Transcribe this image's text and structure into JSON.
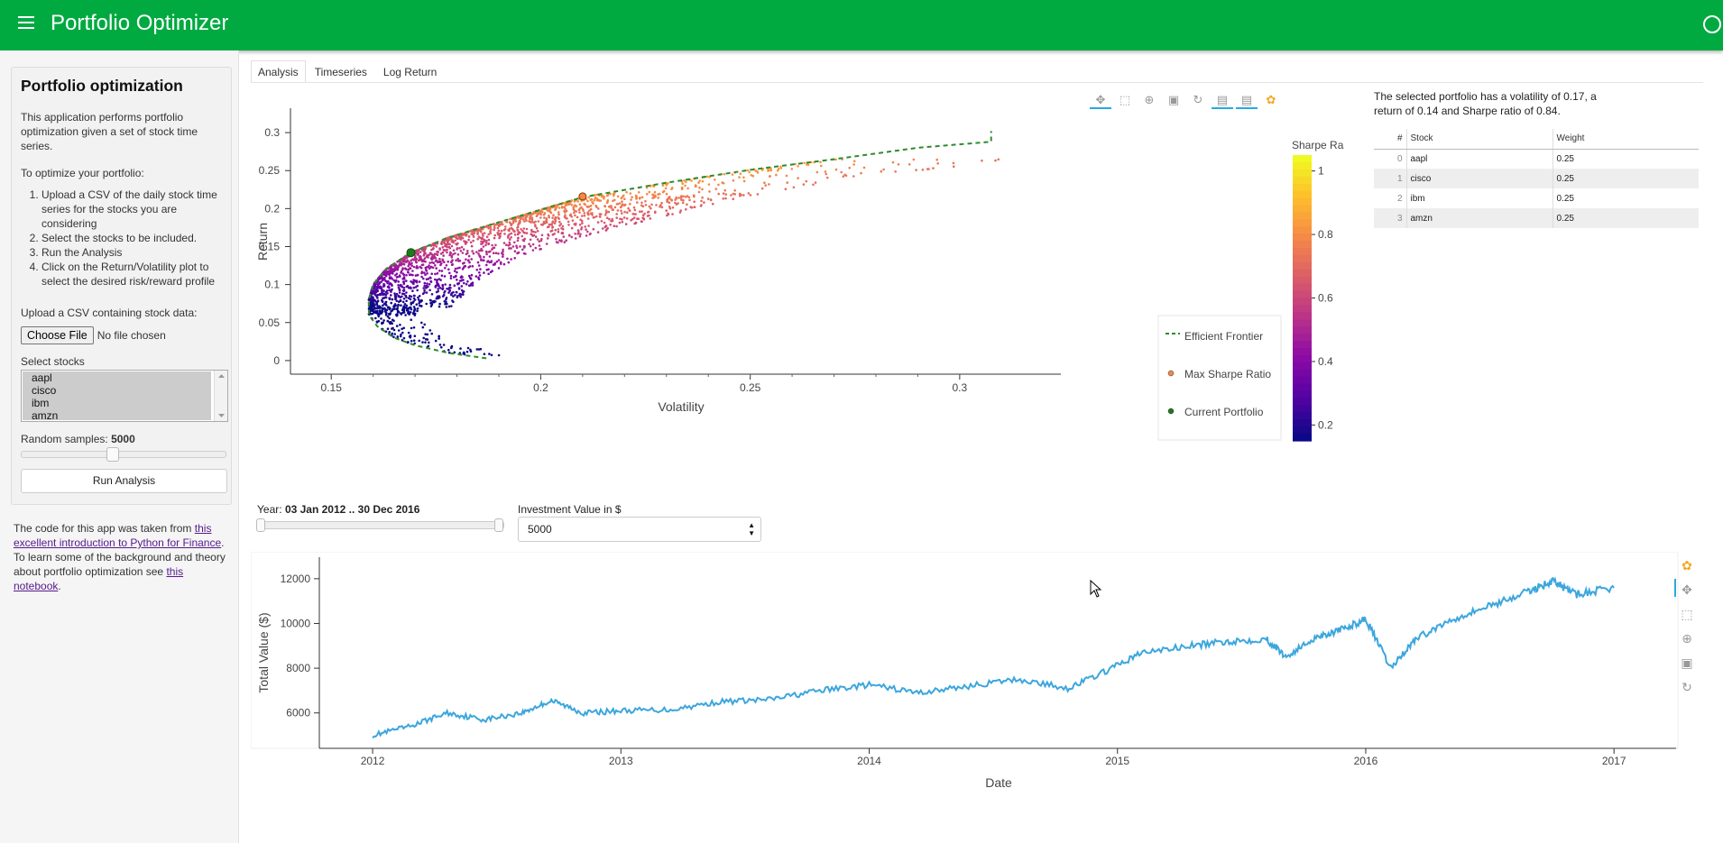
{
  "header": {
    "title": "Portfolio Optimizer",
    "menu_icon": "hamburger-icon",
    "right_icon": "circle-icon"
  },
  "sidebar": {
    "card_title": "Portfolio optimization",
    "intro": "This application performs portfolio optimization given a set of stock time series.",
    "steps_heading": "To optimize your portfolio:",
    "steps": [
      "Upload a CSV of the daily stock time series for the stocks you are considering",
      "Select the stocks to be included.",
      "Run the Analysis",
      "Click on the Return/Volatility plot to select the desired risk/reward profile"
    ],
    "upload_label": "Upload a CSV containing stock data:",
    "choose_file_label": "Choose File",
    "no_file_text": "No file chosen",
    "select_label": "Select stocks",
    "stocks": [
      "aapl",
      "cisco",
      "ibm",
      "amzn"
    ],
    "samples_label": "Random samples:",
    "samples_value": "5000",
    "samples_fraction": 0.42,
    "run_label": "Run Analysis",
    "footer_part1": "The code for this app was taken from ",
    "footer_link1": "this excellent introduction to Python for Finance",
    "footer_part2": ". To learn some of the background and theory about portfolio optimization see ",
    "footer_link2": "this notebook",
    "footer_part3": "."
  },
  "tabs": [
    "Analysis",
    "Timeseries",
    "Log Return"
  ],
  "active_tab": "Analysis",
  "toolbar_icons": [
    "pan-icon",
    "box-zoom-icon",
    "wheel-zoom-icon",
    "save-icon",
    "reset-icon",
    "hover-icon",
    "hover-icon",
    "bokeh-logo-icon"
  ],
  "info": "The selected portfolio has a volatility of 0.17, a return of 0.14 and Sharpe ratio of 0.84.",
  "weights": {
    "headers": [
      "#",
      "Stock",
      "Weight"
    ],
    "rows": [
      {
        "idx": "0",
        "stock": "aapl",
        "weight": "0.25"
      },
      {
        "idx": "1",
        "stock": "cisco",
        "weight": "0.25"
      },
      {
        "idx": "2",
        "stock": "ibm",
        "weight": "0.25"
      },
      {
        "idx": "3",
        "stock": "amzn",
        "weight": "0.25"
      }
    ]
  },
  "year": {
    "label": "Year:",
    "value": "03 Jan 2012 .. 30 Dec 2016"
  },
  "investment": {
    "label": "Investment Value in $",
    "value": "5000"
  },
  "colors": {
    "header": "#00aa41",
    "frontier": "#2e8b2e",
    "line": "#3ca6dd",
    "max_sharpe": "#f08a45",
    "current": "#1e7a1e"
  },
  "chart_data": [
    {
      "type": "scatter",
      "xlabel": "Volatility",
      "ylabel": "Return",
      "xlim": [
        0.145,
        0.322
      ],
      "ylim": [
        -0.012,
        0.325
      ],
      "xticks": [
        "0.15",
        "0.2",
        "0.25",
        "0.3"
      ],
      "yticks": [
        "0",
        "0.05",
        "0.1",
        "0.15",
        "0.2",
        "0.25",
        "0.3"
      ],
      "colorbar": {
        "title": "Sharpe Ra",
        "ticks": [
          "1",
          "0.8",
          "0.6",
          "0.4",
          "0.2"
        ],
        "range": [
          0.15,
          1.05
        ]
      },
      "legend": {
        "position": "bottom-right",
        "entries": [
          "Efficient Frontier",
          "Max Sharpe Ratio",
          "Current Portfolio"
        ]
      },
      "efficient_frontier": [
        [
          0.187,
          0.003
        ],
        [
          0.178,
          0.01
        ],
        [
          0.17,
          0.02
        ],
        [
          0.165,
          0.03
        ],
        [
          0.161,
          0.045
        ],
        [
          0.159,
          0.06
        ],
        [
          0.159,
          0.08
        ],
        [
          0.16,
          0.1
        ],
        [
          0.163,
          0.12
        ],
        [
          0.169,
          0.142
        ],
        [
          0.178,
          0.162
        ],
        [
          0.19,
          0.182
        ],
        [
          0.21,
          0.215
        ],
        [
          0.23,
          0.234
        ],
        [
          0.25,
          0.251
        ],
        [
          0.27,
          0.265
        ],
        [
          0.29,
          0.28
        ],
        [
          0.3075,
          0.288
        ],
        [
          0.3075,
          0.302
        ]
      ],
      "max_sharpe": {
        "volatility": 0.21,
        "return": 0.216
      },
      "current": {
        "volatility": 0.169,
        "return": 0.142
      },
      "samples": 5000
    },
    {
      "type": "line",
      "xlabel": "Date",
      "ylabel": "Total Value ($)",
      "xlim": [
        2011.8,
        2017.25
      ],
      "ylim": [
        4700,
        12800
      ],
      "xticks": [
        "2012",
        "2013",
        "2014",
        "2015",
        "2016",
        "2017"
      ],
      "yticks": [
        "6000",
        "8000",
        "10000",
        "12000"
      ],
      "x": [
        2012.0,
        2012.15,
        2012.3,
        2012.45,
        2012.6,
        2012.72,
        2012.85,
        2013.0,
        2013.2,
        2013.4,
        2013.6,
        2013.8,
        2014.0,
        2014.2,
        2014.4,
        2014.6,
        2014.8,
        2014.95,
        2015.1,
        2015.3,
        2015.45,
        2015.6,
        2015.68,
        2015.8,
        2015.9,
        2016.0,
        2016.1,
        2016.2,
        2016.35,
        2016.5,
        2016.65,
        2016.75,
        2016.85,
        2017.0
      ],
      "values": [
        5000,
        5400,
        6000,
        5700,
        6000,
        6550,
        6000,
        6100,
        6150,
        6500,
        6600,
        7000,
        7250,
        6900,
        7200,
        7500,
        7100,
        7850,
        8700,
        9000,
        9200,
        9300,
        8500,
        9400,
        9700,
        10200,
        8000,
        9300,
        10200,
        10800,
        11400,
        11900,
        11300,
        11600
      ]
    }
  ]
}
